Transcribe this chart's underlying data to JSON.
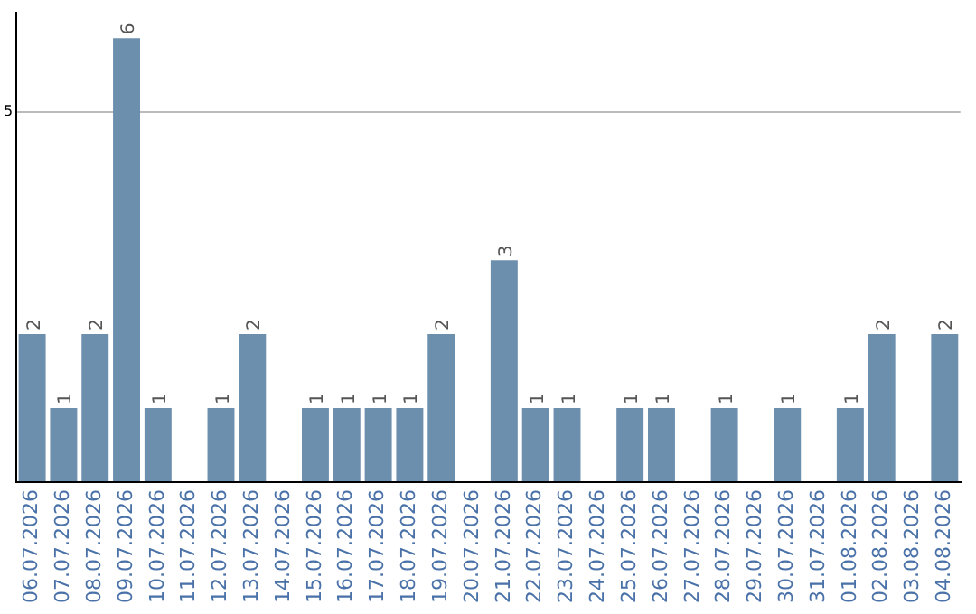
{
  "chart_data": {
    "type": "bar",
    "categories": [
      "06.07.2026",
      "07.07.2026",
      "08.07.2026",
      "09.07.2026",
      "10.07.2026",
      "11.07.2026",
      "12.07.2026",
      "13.07.2026",
      "14.07.2026",
      "15.07.2026",
      "16.07.2026",
      "17.07.2026",
      "18.07.2026",
      "19.07.2026",
      "20.07.2026",
      "21.07.2026",
      "22.07.2026",
      "23.07.2026",
      "24.07.2026",
      "25.07.2026",
      "26.07.2026",
      "27.07.2026",
      "28.07.2026",
      "29.07.2026",
      "30.07.2026",
      "31.07.2026",
      "01.08.2026",
      "02.08.2026",
      "03.08.2026",
      "04.08.2026"
    ],
    "values": [
      2,
      1,
      2,
      6,
      1,
      0,
      1,
      2,
      0,
      1,
      1,
      1,
      1,
      2,
      0,
      3,
      1,
      1,
      0,
      1,
      1,
      0,
      1,
      0,
      1,
      0,
      1,
      2,
      0,
      2
    ],
    "value_labels": [
      "2",
      "1",
      "2",
      "6",
      "1",
      null,
      "1",
      "2",
      null,
      "1",
      "1",
      "1",
      "1",
      "2",
      null,
      "3",
      "1",
      "1",
      null,
      "1",
      "1",
      null,
      "1",
      null,
      "1",
      null,
      "1",
      "2",
      null,
      "2"
    ],
    "color": "#6d8fae",
    "ylim": [
      0,
      6.35
    ],
    "yticks": [
      {
        "value": 0,
        "label": null
      },
      5
    ],
    "grid": "y",
    "legend": false
  }
}
